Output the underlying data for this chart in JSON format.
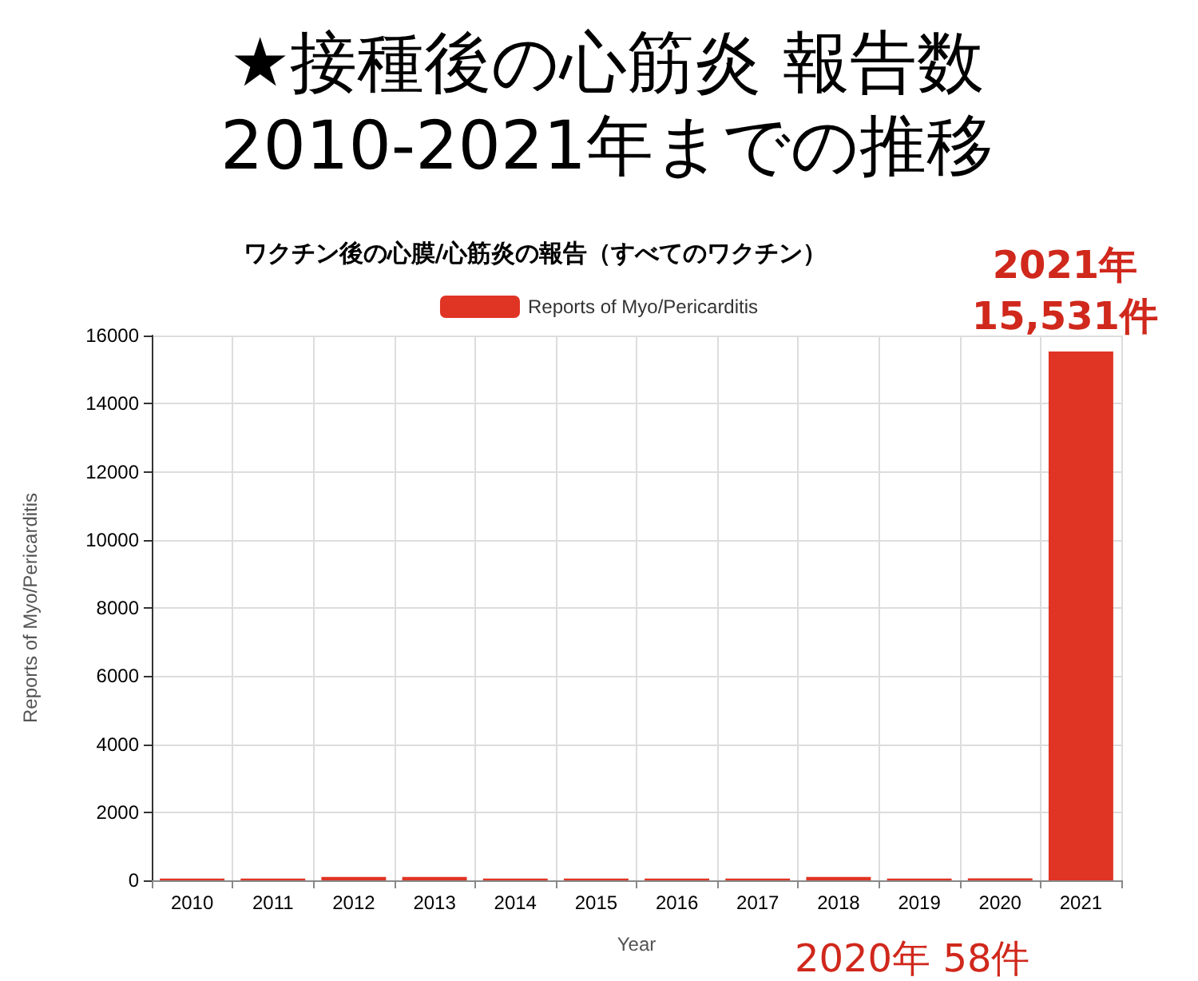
{
  "chart_data": {
    "type": "bar",
    "title": "★接種後の心筋炎 報告数\n2010-2021年までの推移",
    "subtitle": "ワクチン後の心膜/心筋炎の報告（すべてのワクチン）",
    "xlabel": "Year",
    "ylabel": "Reports of Myo/Pericarditis",
    "categories": [
      "2010",
      "2011",
      "2012",
      "2013",
      "2014",
      "2015",
      "2016",
      "2017",
      "2018",
      "2019",
      "2020",
      "2021"
    ],
    "series": [
      {
        "name": "Reports of Myo/Pericarditis",
        "color": "#e03424",
        "values": [
          50,
          50,
          100,
          100,
          50,
          50,
          50,
          50,
          100,
          50,
          58,
          15531
        ]
      }
    ],
    "ylim": [
      0,
      16000
    ],
    "yticks": [
      0,
      2000,
      4000,
      6000,
      8000,
      10000,
      12000,
      14000,
      16000
    ],
    "grid": true,
    "legend": "top",
    "annotations": [
      {
        "text": "2021年\n15,531件",
        "x": "2021",
        "y": 15531
      },
      {
        "text": "2020年 58件",
        "x": "2020",
        "y": 58
      }
    ]
  }
}
